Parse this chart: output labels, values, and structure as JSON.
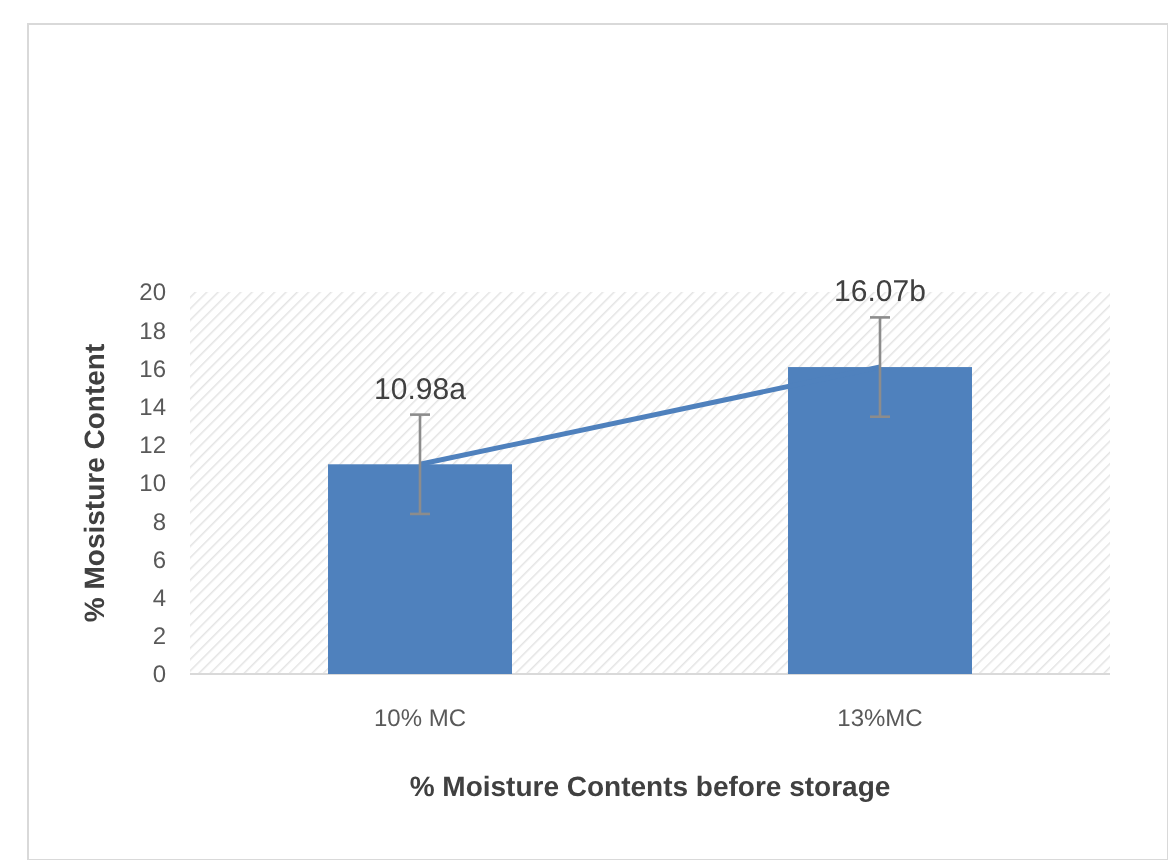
{
  "chart_data": {
    "type": "bar",
    "xlabel": "% Moisture Contents before storage",
    "ylabel": "% Mosisture Content",
    "categories": [
      "10% MC",
      "13%MC"
    ],
    "series": [
      {
        "color": "#4f81bd",
        "values": [
          10.98,
          16.07
        ],
        "errors": [
          2.6,
          2.6
        ],
        "value_labels": [
          "10.98a",
          "16.07b"
        ]
      },
      {
        "type": "line",
        "color": "#4f81bd",
        "values": [
          10.98,
          16.07
        ],
        "marker": "none"
      }
    ],
    "ylim": [
      0,
      20
    ],
    "yticks": [
      0,
      2,
      4,
      6,
      8,
      10,
      12,
      14,
      16,
      18,
      20
    ],
    "grid": false
  }
}
